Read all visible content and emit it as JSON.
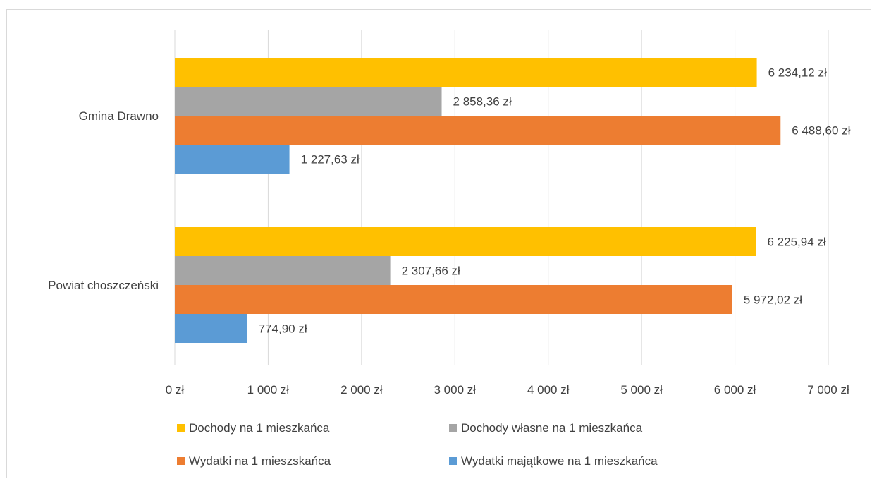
{
  "chart_data": {
    "type": "bar",
    "orientation": "horizontal",
    "categories": [
      "Gmina Drawno",
      "Powiat choszczeński"
    ],
    "series": [
      {
        "name": "Dochody na 1 mieszkańca",
        "color": "#FFC000",
        "values": [
          6234.12,
          6225.94
        ],
        "labels": [
          "6 234,12 zł",
          "6 225,94 zł"
        ]
      },
      {
        "name": "Dochody własne na 1 mieszkańca",
        "color": "#A5A5A5",
        "values": [
          2858.36,
          2307.66
        ],
        "labels": [
          "2 858,36 zł",
          "2 307,66 zł"
        ]
      },
      {
        "name": "Wydatki na 1 mieszskańca",
        "color": "#ED7D31",
        "values": [
          6488.6,
          5972.02
        ],
        "labels": [
          "6 488,60 zł",
          "5 972,02 zł"
        ]
      },
      {
        "name": "Wydatki majątkowe na 1 mieszkańca",
        "color": "#5B9BD5",
        "values": [
          1227.63,
          774.9
        ],
        "labels": [
          "1 227,63 zł",
          "774,90 zł"
        ]
      }
    ],
    "xlim": [
      0,
      7000
    ],
    "ticks": [
      0,
      1000,
      2000,
      3000,
      4000,
      5000,
      6000,
      7000
    ],
    "tick_labels": [
      "0 zł",
      "1 000 zł",
      "2 000 zł",
      "3 000 zł",
      "4 000 zł",
      "5 000 zł",
      "6 000 zł",
      "7 000 zł"
    ],
    "grid": true,
    "legend_position": "bottom",
    "title": "",
    "xlabel": "",
    "ylabel": ""
  }
}
